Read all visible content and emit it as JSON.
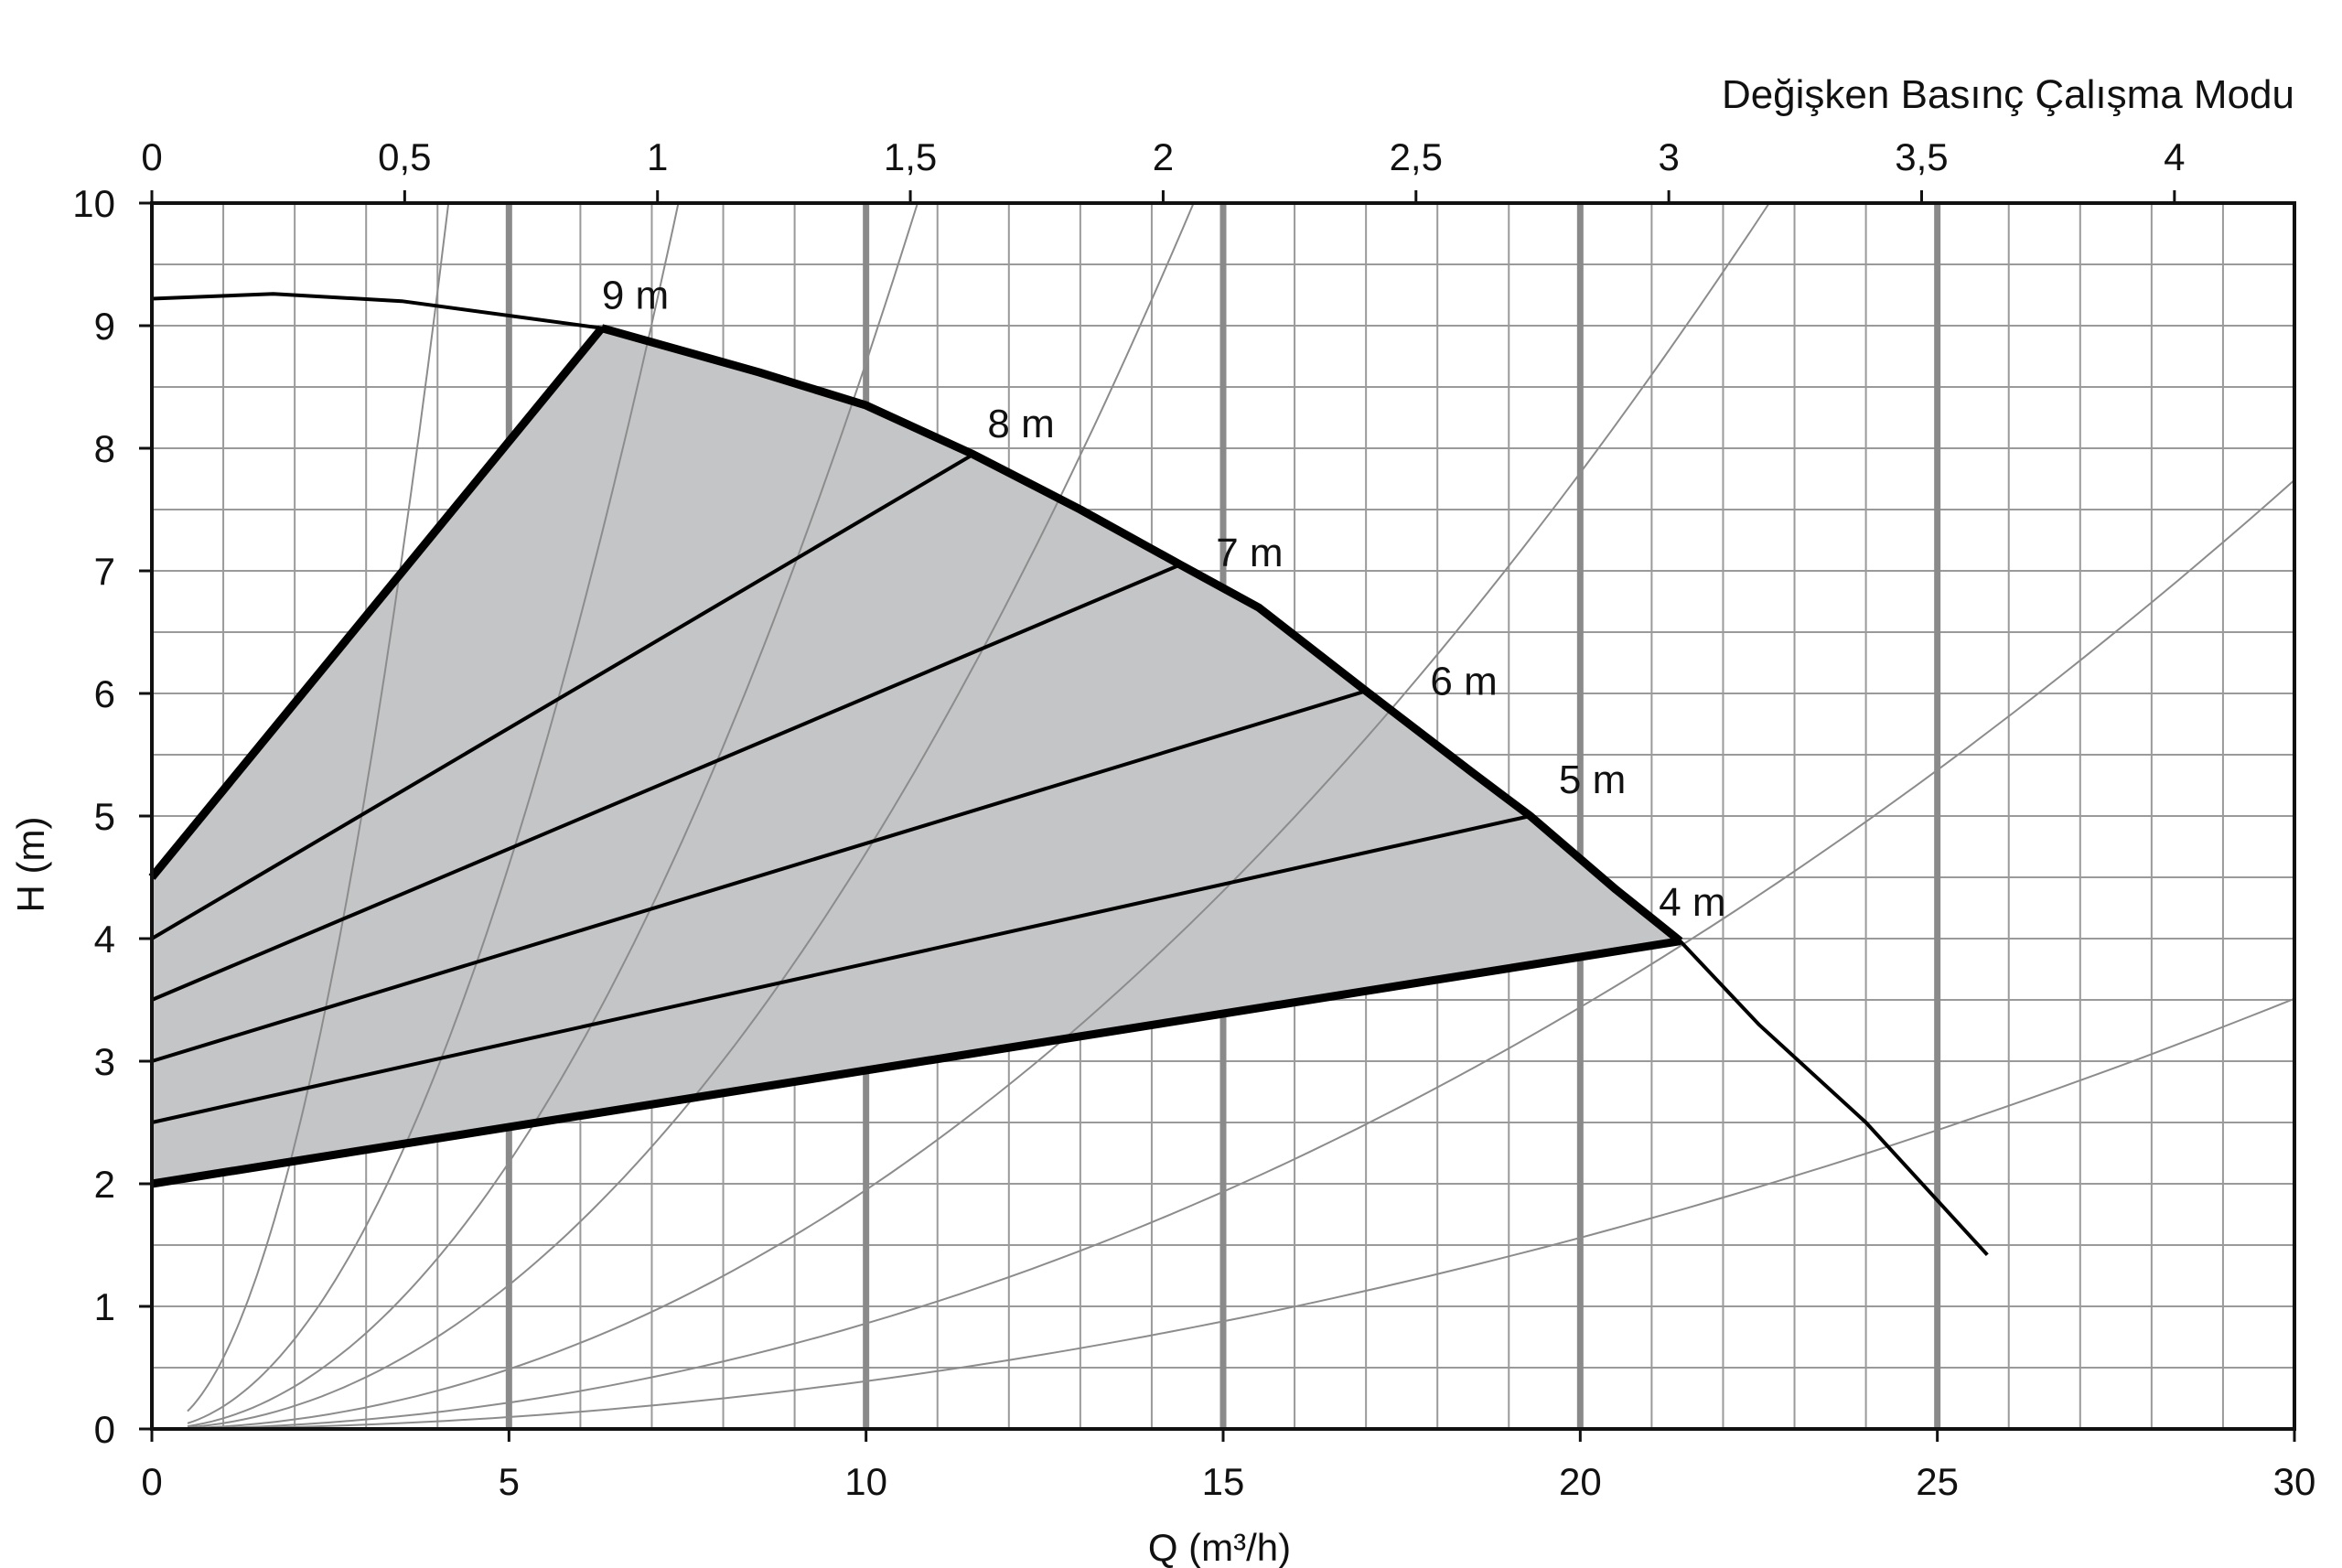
{
  "chart_data": {
    "type": "line",
    "title": "Değişken Basınç Çalışma Modu",
    "xlabel": "Q (m³/h)",
    "ylabel": "H (m)",
    "xlim": [
      0,
      30
    ],
    "ylim": [
      0,
      10
    ],
    "x_ticks": [
      0,
      5,
      10,
      15,
      20,
      25,
      30
    ],
    "y_ticks": [
      0,
      1,
      2,
      3,
      4,
      5,
      6,
      7,
      8,
      9,
      10
    ],
    "top_axis": {
      "ticks": [
        "0",
        "0,5",
        "1",
        "1,5",
        "2",
        "2,5",
        "3",
        "3,5",
        "4"
      ],
      "tick_values": [
        0,
        0.5,
        1,
        1.5,
        2,
        2.5,
        3,
        3.5,
        4
      ],
      "unit_factor": 7.08
    },
    "grid": true,
    "major_vertical_grid_q": [
      5,
      10,
      15,
      20,
      25
    ],
    "max_curve": {
      "points": [
        [
          0,
          9.22
        ],
        [
          1.7,
          9.26
        ],
        [
          3.5,
          9.2
        ],
        [
          6.3,
          8.98
        ],
        [
          8.5,
          8.62
        ],
        [
          10,
          8.35
        ],
        [
          11.5,
          7.95
        ],
        [
          13,
          7.5
        ],
        [
          14.4,
          7.05
        ],
        [
          15.5,
          6.7
        ],
        [
          17,
          6.02
        ],
        [
          18.5,
          5.35
        ],
        [
          19.3,
          5.0
        ],
        [
          20.5,
          4.4
        ],
        [
          21.4,
          3.98
        ],
        [
          22.5,
          3.3
        ],
        [
          24,
          2.5
        ],
        [
          25.7,
          1.42
        ]
      ]
    },
    "shaded_region": {
      "fill": "#c4c5c7",
      "points": [
        [
          0,
          4.5
        ],
        [
          6.3,
          8.98
        ],
        [
          8.5,
          8.62
        ],
        [
          10,
          8.35
        ],
        [
          11.5,
          7.95
        ],
        [
          13,
          7.5
        ],
        [
          14.4,
          7.05
        ],
        [
          15.5,
          6.7
        ],
        [
          17,
          6.02
        ],
        [
          18.5,
          5.35
        ],
        [
          19.3,
          5.0
        ],
        [
          20.5,
          4.4
        ],
        [
          21.4,
          3.98
        ],
        [
          0,
          2.0
        ]
      ]
    },
    "series": [
      {
        "name": "9 m",
        "points": [
          [
            0,
            4.5
          ],
          [
            6.3,
            8.98
          ]
        ],
        "label_at": [
          6.3,
          9.25
        ]
      },
      {
        "name": "8 m",
        "points": [
          [
            0,
            4.0
          ],
          [
            11.5,
            7.95
          ]
        ],
        "label_at": [
          11.7,
          8.2
        ]
      },
      {
        "name": "7 m",
        "points": [
          [
            0,
            3.5
          ],
          [
            14.4,
            7.05
          ]
        ],
        "label_at": [
          14.9,
          7.15
        ]
      },
      {
        "name": "6 m",
        "points": [
          [
            0,
            3.0
          ],
          [
            17.0,
            6.02
          ]
        ],
        "label_at": [
          17.9,
          6.1
        ]
      },
      {
        "name": "5 m",
        "points": [
          [
            0,
            2.5
          ],
          [
            19.3,
            5.0
          ]
        ],
        "label_at": [
          19.7,
          5.3
        ]
      },
      {
        "name": "4 m",
        "points": [
          [
            0,
            2.0
          ],
          [
            21.4,
            3.98
          ]
        ],
        "label_at": [
          21.1,
          4.3
        ]
      }
    ],
    "system_curves": [
      {
        "k": 0.58,
        "x_start": 0.5
      },
      {
        "k": 0.184,
        "x_start": 0.5
      },
      {
        "k": 0.087,
        "x_start": 0.5
      },
      {
        "k": 0.047,
        "x_start": 0.5
      },
      {
        "k": 0.0195,
        "x_start": 0.5
      },
      {
        "k": 0.0086,
        "x_start": 0.5
      },
      {
        "k": 0.0039,
        "x_start": 0.5
      }
    ]
  }
}
